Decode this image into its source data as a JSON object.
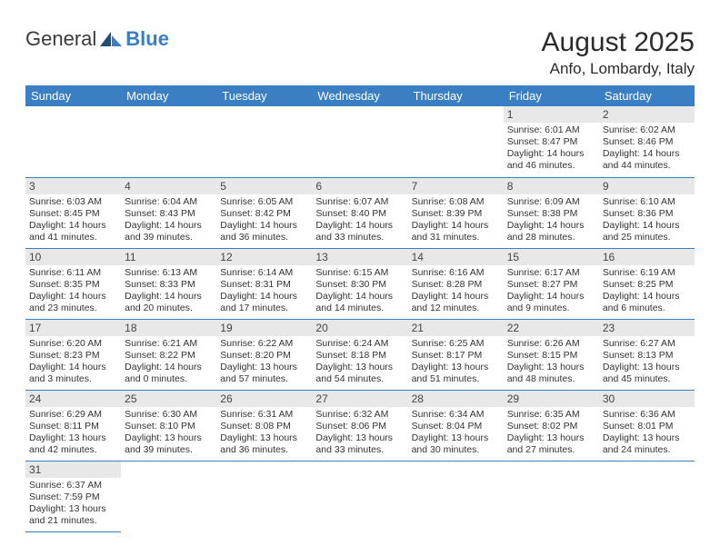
{
  "logo": {
    "text1": "General",
    "text2": "Blue"
  },
  "title": "August 2025",
  "location": "Anfo, Lombardy, Italy",
  "header_bg": "#3a7fc4",
  "daynum_bg": "#e8e8e8",
  "weekdays": [
    "Sunday",
    "Monday",
    "Tuesday",
    "Wednesday",
    "Thursday",
    "Friday",
    "Saturday"
  ],
  "weeks": [
    [
      null,
      null,
      null,
      null,
      null,
      {
        "n": "1",
        "sunrise": "Sunrise: 6:01 AM",
        "sunset": "Sunset: 8:47 PM",
        "daylight": "Daylight: 14 hours and 46 minutes."
      },
      {
        "n": "2",
        "sunrise": "Sunrise: 6:02 AM",
        "sunset": "Sunset: 8:46 PM",
        "daylight": "Daylight: 14 hours and 44 minutes."
      }
    ],
    [
      {
        "n": "3",
        "sunrise": "Sunrise: 6:03 AM",
        "sunset": "Sunset: 8:45 PM",
        "daylight": "Daylight: 14 hours and 41 minutes."
      },
      {
        "n": "4",
        "sunrise": "Sunrise: 6:04 AM",
        "sunset": "Sunset: 8:43 PM",
        "daylight": "Daylight: 14 hours and 39 minutes."
      },
      {
        "n": "5",
        "sunrise": "Sunrise: 6:05 AM",
        "sunset": "Sunset: 8:42 PM",
        "daylight": "Daylight: 14 hours and 36 minutes."
      },
      {
        "n": "6",
        "sunrise": "Sunrise: 6:07 AM",
        "sunset": "Sunset: 8:40 PM",
        "daylight": "Daylight: 14 hours and 33 minutes."
      },
      {
        "n": "7",
        "sunrise": "Sunrise: 6:08 AM",
        "sunset": "Sunset: 8:39 PM",
        "daylight": "Daylight: 14 hours and 31 minutes."
      },
      {
        "n": "8",
        "sunrise": "Sunrise: 6:09 AM",
        "sunset": "Sunset: 8:38 PM",
        "daylight": "Daylight: 14 hours and 28 minutes."
      },
      {
        "n": "9",
        "sunrise": "Sunrise: 6:10 AM",
        "sunset": "Sunset: 8:36 PM",
        "daylight": "Daylight: 14 hours and 25 minutes."
      }
    ],
    [
      {
        "n": "10",
        "sunrise": "Sunrise: 6:11 AM",
        "sunset": "Sunset: 8:35 PM",
        "daylight": "Daylight: 14 hours and 23 minutes."
      },
      {
        "n": "11",
        "sunrise": "Sunrise: 6:13 AM",
        "sunset": "Sunset: 8:33 PM",
        "daylight": "Daylight: 14 hours and 20 minutes."
      },
      {
        "n": "12",
        "sunrise": "Sunrise: 6:14 AM",
        "sunset": "Sunset: 8:31 PM",
        "daylight": "Daylight: 14 hours and 17 minutes."
      },
      {
        "n": "13",
        "sunrise": "Sunrise: 6:15 AM",
        "sunset": "Sunset: 8:30 PM",
        "daylight": "Daylight: 14 hours and 14 minutes."
      },
      {
        "n": "14",
        "sunrise": "Sunrise: 6:16 AM",
        "sunset": "Sunset: 8:28 PM",
        "daylight": "Daylight: 14 hours and 12 minutes."
      },
      {
        "n": "15",
        "sunrise": "Sunrise: 6:17 AM",
        "sunset": "Sunset: 8:27 PM",
        "daylight": "Daylight: 14 hours and 9 minutes."
      },
      {
        "n": "16",
        "sunrise": "Sunrise: 6:19 AM",
        "sunset": "Sunset: 8:25 PM",
        "daylight": "Daylight: 14 hours and 6 minutes."
      }
    ],
    [
      {
        "n": "17",
        "sunrise": "Sunrise: 6:20 AM",
        "sunset": "Sunset: 8:23 PM",
        "daylight": "Daylight: 14 hours and 3 minutes."
      },
      {
        "n": "18",
        "sunrise": "Sunrise: 6:21 AM",
        "sunset": "Sunset: 8:22 PM",
        "daylight": "Daylight: 14 hours and 0 minutes."
      },
      {
        "n": "19",
        "sunrise": "Sunrise: 6:22 AM",
        "sunset": "Sunset: 8:20 PM",
        "daylight": "Daylight: 13 hours and 57 minutes."
      },
      {
        "n": "20",
        "sunrise": "Sunrise: 6:24 AM",
        "sunset": "Sunset: 8:18 PM",
        "daylight": "Daylight: 13 hours and 54 minutes."
      },
      {
        "n": "21",
        "sunrise": "Sunrise: 6:25 AM",
        "sunset": "Sunset: 8:17 PM",
        "daylight": "Daylight: 13 hours and 51 minutes."
      },
      {
        "n": "22",
        "sunrise": "Sunrise: 6:26 AM",
        "sunset": "Sunset: 8:15 PM",
        "daylight": "Daylight: 13 hours and 48 minutes."
      },
      {
        "n": "23",
        "sunrise": "Sunrise: 6:27 AM",
        "sunset": "Sunset: 8:13 PM",
        "daylight": "Daylight: 13 hours and 45 minutes."
      }
    ],
    [
      {
        "n": "24",
        "sunrise": "Sunrise: 6:29 AM",
        "sunset": "Sunset: 8:11 PM",
        "daylight": "Daylight: 13 hours and 42 minutes."
      },
      {
        "n": "25",
        "sunrise": "Sunrise: 6:30 AM",
        "sunset": "Sunset: 8:10 PM",
        "daylight": "Daylight: 13 hours and 39 minutes."
      },
      {
        "n": "26",
        "sunrise": "Sunrise: 6:31 AM",
        "sunset": "Sunset: 8:08 PM",
        "daylight": "Daylight: 13 hours and 36 minutes."
      },
      {
        "n": "27",
        "sunrise": "Sunrise: 6:32 AM",
        "sunset": "Sunset: 8:06 PM",
        "daylight": "Daylight: 13 hours and 33 minutes."
      },
      {
        "n": "28",
        "sunrise": "Sunrise: 6:34 AM",
        "sunset": "Sunset: 8:04 PM",
        "daylight": "Daylight: 13 hours and 30 minutes."
      },
      {
        "n": "29",
        "sunrise": "Sunrise: 6:35 AM",
        "sunset": "Sunset: 8:02 PM",
        "daylight": "Daylight: 13 hours and 27 minutes."
      },
      {
        "n": "30",
        "sunrise": "Sunrise: 6:36 AM",
        "sunset": "Sunset: 8:01 PM",
        "daylight": "Daylight: 13 hours and 24 minutes."
      }
    ],
    [
      {
        "n": "31",
        "sunrise": "Sunrise: 6:37 AM",
        "sunset": "Sunset: 7:59 PM",
        "daylight": "Daylight: 13 hours and 21 minutes."
      },
      null,
      null,
      null,
      null,
      null,
      null
    ]
  ]
}
